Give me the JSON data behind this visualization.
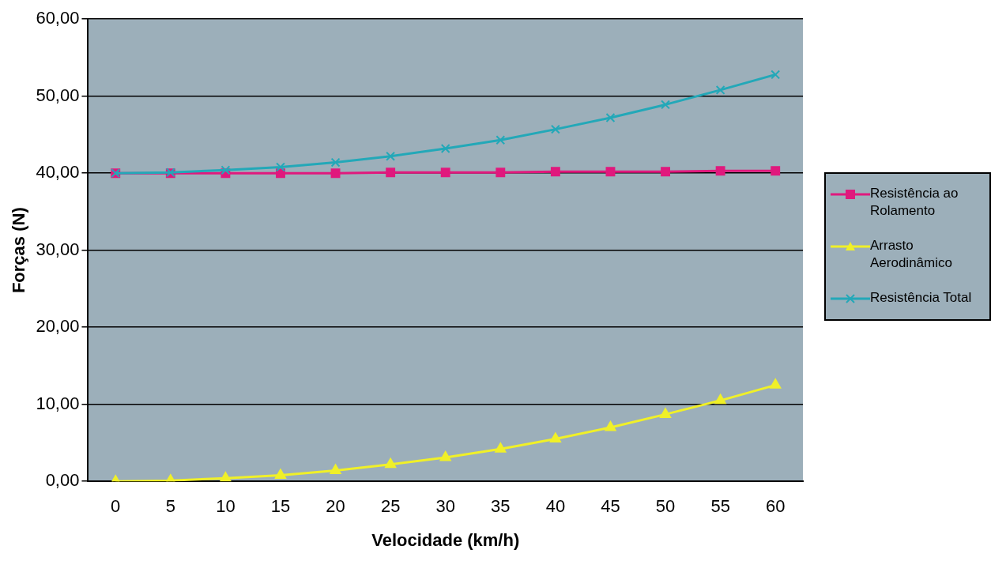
{
  "chart_data": {
    "type": "line",
    "xlabel": "Velocidade (km/h)",
    "ylabel": "Forças (N)",
    "categories": [
      "0",
      "5",
      "10",
      "15",
      "20",
      "25",
      "30",
      "35",
      "40",
      "45",
      "50",
      "55",
      "60"
    ],
    "series": [
      {
        "name": "Resistência ao Rolamento",
        "color": "#e0197d",
        "marker": "square",
        "values": [
          40.0,
          40.0,
          40.0,
          40.0,
          40.0,
          40.1,
          40.1,
          40.1,
          40.2,
          40.2,
          40.2,
          40.3,
          40.3
        ]
      },
      {
        "name": "Arrasto Aerodinâmico",
        "color": "#f0f028",
        "marker": "triangle",
        "values": [
          0.0,
          0.1,
          0.4,
          0.8,
          1.4,
          2.2,
          3.1,
          4.2,
          5.5,
          7.0,
          8.7,
          10.5,
          12.5
        ]
      },
      {
        "name": "Resistência Total",
        "color": "#23a8b8",
        "marker": "cross",
        "values": [
          40.0,
          40.1,
          40.4,
          40.8,
          41.4,
          42.2,
          43.2,
          44.3,
          45.7,
          47.2,
          48.9,
          50.8,
          52.8
        ]
      }
    ],
    "ylim": [
      0,
      60
    ],
    "yticks": [
      {
        "value": 0,
        "label": "0,00"
      },
      {
        "value": 10,
        "label": "10,00"
      },
      {
        "value": 20,
        "label": "20,00"
      },
      {
        "value": 30,
        "label": "30,00"
      },
      {
        "value": 40,
        "label": "40,00"
      },
      {
        "value": 50,
        "label": "50,00"
      },
      {
        "value": 60,
        "label": "60,00"
      }
    ],
    "grid": "y",
    "legend": "right"
  }
}
